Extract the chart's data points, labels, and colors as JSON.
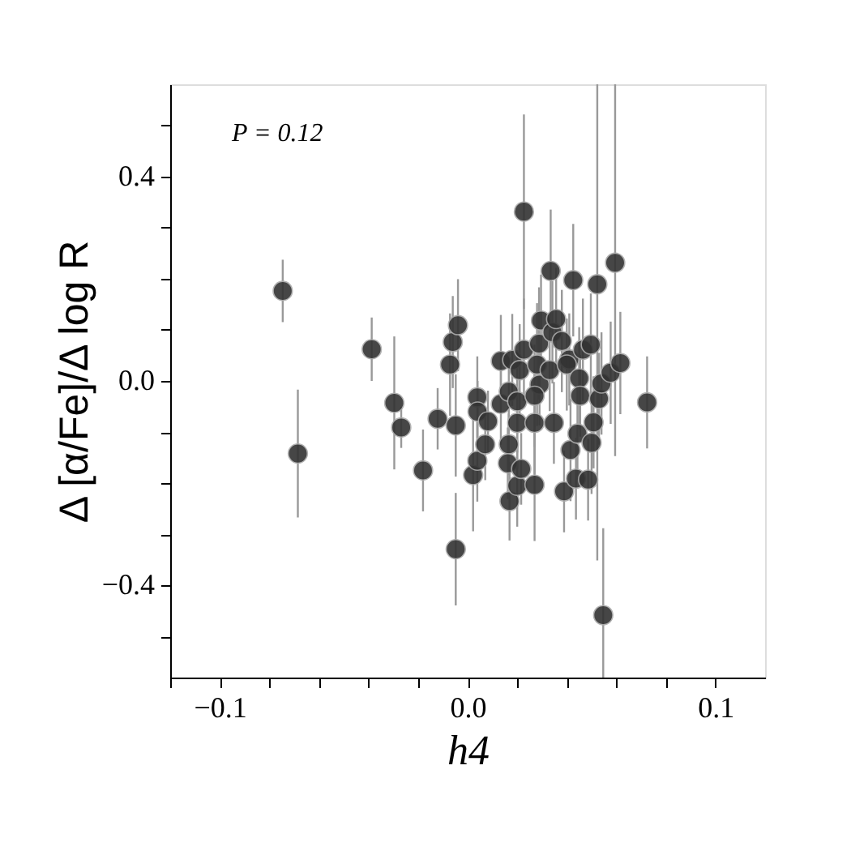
{
  "chart_data": {
    "type": "scatter",
    "xlabel": "h4",
    "ylabel": "Δ [α/Fe]/Δ log R",
    "annotations": [
      "P = 0.12"
    ],
    "x": [
      -0.0746,
      -0.0685,
      -0.0387,
      -0.0296,
      -0.0268,
      -0.018,
      -0.0121,
      -0.0071,
      -0.006,
      -0.0039,
      -0.0048,
      -0.0048,
      0.0022,
      0.0039,
      0.0039,
      0.004,
      0.0071,
      0.0082,
      0.0134,
      0.0134,
      0.0166,
      0.0166,
      0.0162,
      0.0169,
      0.02,
      0.02,
      0.02,
      0.0216,
      0.018,
      0.0227,
      0.0227,
      0.021,
      0.027,
      0.027,
      0.028,
      0.029,
      0.0288,
      0.0296,
      0.027,
      0.0335,
      0.0342,
      0.0357,
      0.0331,
      0.0348,
      0.0389,
      0.038,
      0.041,
      0.04,
      0.0415,
      0.0426,
      0.0437,
      0.0443,
      0.045,
      0.0454,
      0.0465,
      0.0486,
      0.0497,
      0.05,
      0.0508,
      0.0523,
      0.053,
      0.054,
      0.0547,
      0.0577,
      0.0595,
      0.0616,
      0.0724
    ],
    "values": [
      0.176,
      -0.142,
      0.062,
      -0.043,
      -0.091,
      -0.175,
      -0.074,
      0.032,
      0.076,
      0.109,
      -0.087,
      -0.329,
      -0.184,
      -0.032,
      -0.156,
      -0.06,
      -0.124,
      -0.079,
      -0.045,
      0.039,
      -0.021,
      -0.124,
      -0.161,
      -0.235,
      -0.082,
      -0.04,
      -0.205,
      -0.172,
      0.041,
      0.061,
      0.331,
      0.021,
      -0.203,
      -0.082,
      0.032,
      -0.007,
      0.073,
      0.118,
      -0.029,
      0.215,
      0.095,
      0.121,
      0.021,
      -0.082,
      -0.216,
      0.078,
      0.042,
      0.032,
      -0.135,
      0.197,
      -0.191,
      -0.103,
      0.005,
      -0.029,
      0.061,
      -0.193,
      0.071,
      -0.121,
      -0.081,
      0.189,
      -0.035,
      -0.005,
      -0.458,
      0.016,
      0.231,
      0.035,
      -0.042
    ],
    "errors": [
      0.061,
      0.125,
      0.062,
      0.13,
      0.04,
      0.08,
      0.06,
      0.1,
      0.09,
      0.09,
      0.1,
      0.11,
      0.11,
      0.08,
      0.08,
      0.06,
      0.07,
      0.06,
      0.08,
      0.09,
      0.08,
      0.06,
      0.07,
      0.077,
      0.09,
      0.1,
      0.08,
      0.07,
      0.09,
      0.1,
      0.19,
      0.09,
      0.11,
      0.1,
      0.12,
      0.08,
      0.11,
      0.09,
      0.1,
      0.12,
      0.1,
      0.1,
      0.08,
      0.08,
      0.08,
      0.1,
      0.09,
      0.09,
      0.1,
      0.11,
      0.08,
      0.09,
      0.1,
      0.08,
      0.1,
      0.08,
      0.1,
      0.1,
      0.09,
      0.54,
      0.09,
      0.1,
      0.17,
      0.1,
      0.378,
      0.1,
      0.09
    ],
    "color": "#333333",
    "marker": "circle",
    "grid": false,
    "xlim": [
      -0.12,
      0.12
    ],
    "xticks": [
      {
        "value": -0.12,
        "label": null
      },
      {
        "value": -0.1,
        "label": "−0.1"
      },
      {
        "value": -0.08,
        "label": null
      },
      {
        "value": -0.06,
        "label": null
      },
      {
        "value": -0.04,
        "label": null
      },
      {
        "value": -0.02,
        "label": null
      },
      {
        "value": 0.0,
        "label": "0.0"
      },
      {
        "value": 0.02,
        "label": null
      },
      {
        "value": 0.04,
        "label": null
      },
      {
        "value": 0.06,
        "label": null
      },
      {
        "value": 0.08,
        "label": null
      },
      {
        "value": 0.1,
        "label": "0.1"
      }
    ],
    "ylim": [
      -0.58,
      0.58
    ],
    "yticks": [
      {
        "value": -0.5,
        "label": null
      },
      {
        "value": -0.4,
        "label": "−0.4"
      },
      {
        "value": -0.3,
        "label": null
      },
      {
        "value": -0.2,
        "label": null
      },
      {
        "value": -0.1,
        "label": null
      },
      {
        "value": 0.0,
        "label": "0.0"
      },
      {
        "value": 0.1,
        "label": null
      },
      {
        "value": 0.2,
        "label": null
      },
      {
        "value": 0.3,
        "label": null
      },
      {
        "value": 0.4,
        "label": "0.4"
      },
      {
        "value": 0.5,
        "label": null
      }
    ]
  }
}
